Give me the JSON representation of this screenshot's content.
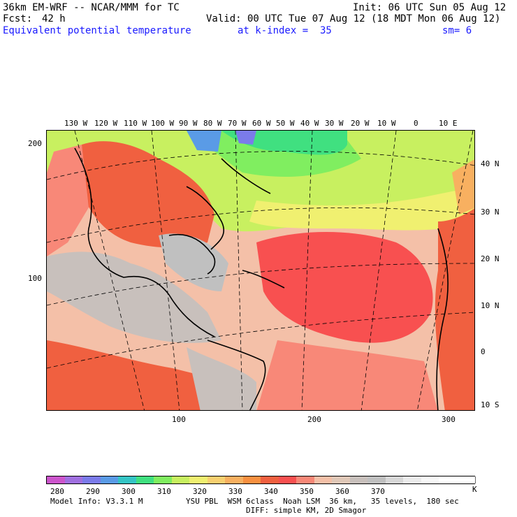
{
  "header": {
    "model_title": "36km EM-WRF -- NCAR/MMM for TC",
    "init": "Init: 06 UTC Sun 05 Aug 12",
    "forecast_label": "Fcst:",
    "forecast_hours": "42 h",
    "valid": "Valid: 00 UTC Tue 07 Aug 12 (18 MDT Mon 06 Aug 12)",
    "field_name": "Equivalent potential temperature",
    "level": "at k-index =  35",
    "smoothing": "sm= 6"
  },
  "map": {
    "top_longitudes": [
      "130 W",
      "120 W",
      "110 W",
      "100 W",
      "90 W",
      "80 W",
      "70 W",
      "60 W",
      "50 W",
      "40 W",
      "30 W",
      "20 W",
      "10 W",
      "0",
      "10 E"
    ],
    "right_latitudes": [
      "40 N",
      "30 N",
      "20 N",
      "10 N",
      "0",
      "10 S"
    ],
    "left_grid_ticks": [
      "200",
      "100"
    ],
    "bottom_grid_ticks": [
      "100",
      "200",
      "300"
    ]
  },
  "colorbar": {
    "labels": [
      "280",
      "290",
      "300",
      "310",
      "320",
      "330",
      "340",
      "350",
      "360",
      "370"
    ],
    "unit": "K",
    "colors": [
      "#cc55cc",
      "#a070e0",
      "#7b7bea",
      "#5a9be6",
      "#35c5c5",
      "#40e080",
      "#80ee60",
      "#c8f060",
      "#f0f070",
      "#f8d070",
      "#f8b060",
      "#f89040",
      "#f06040",
      "#f85050",
      "#f88878",
      "#f4c0a8",
      "#e0c8b8",
      "#c8c0bc",
      "#c0c0c0",
      "#d8d8d8",
      "#ececec",
      "#f8f8f8",
      "#ffffff",
      "#ffffff"
    ]
  },
  "footer": {
    "model_info": "Model Info: V3.3.1 M",
    "physics": "YSU PBL  WSM 6class  Noah LSM  36 km,   35 levels,  180 sec",
    "diffusion": "DIFF: simple KM, 2D Smagor"
  }
}
